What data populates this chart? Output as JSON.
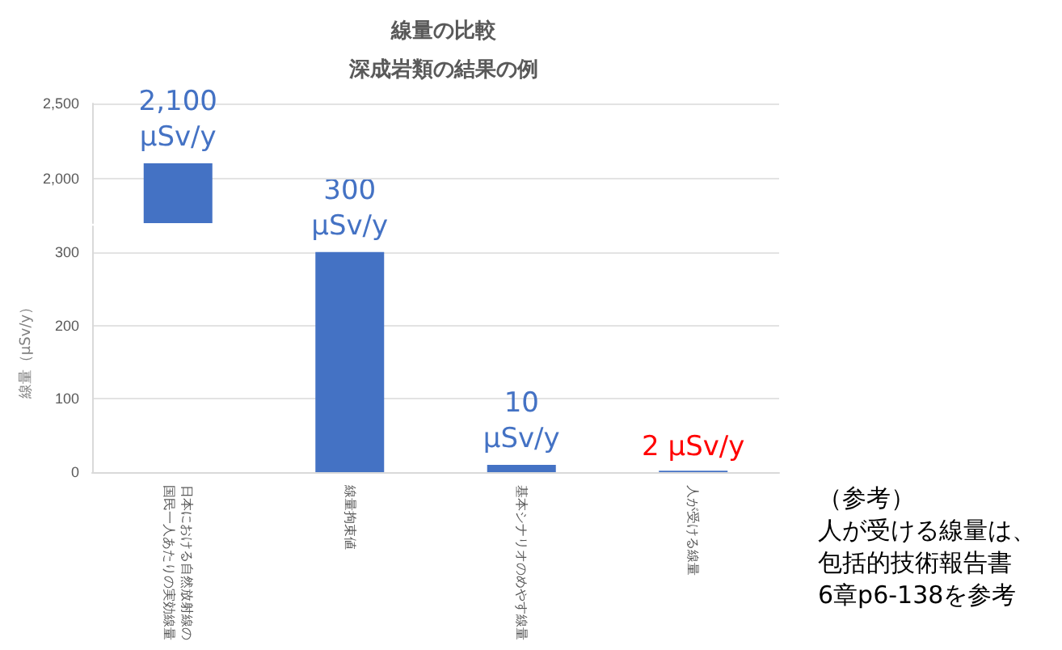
{
  "chart_data": [
    {
      "type": "bar",
      "title": "線量の比較",
      "subtitle": "深成岩類の結果の例",
      "categories": [
        null,
        null,
        null,
        null
      ],
      "values": [
        2100,
        null,
        null,
        null
      ],
      "color": "#4472c4",
      "value_labels": [
        "2,100\nμSv/y",
        null,
        null,
        null
      ],
      "ylim": [
        1700,
        2500
      ],
      "yticks": [
        {
          "value": 2000,
          "label": "2,000"
        },
        {
          "value": 2500,
          "label": "2,500"
        }
      ],
      "grid": "y",
      "tick_labels": "y"
    },
    {
      "type": "bar",
      "ylabel": "線量（μSv/y）",
      "categories": [
        "日本における自然放射線の国民一人あたりの実効線量",
        "線量拘束値",
        "基本シナリオのめやす線量",
        "人が受ける線量"
      ],
      "values": [
        null,
        300,
        10,
        2
      ],
      "color": "#4472c4",
      "value_labels": [
        null,
        "300\nμSv/y",
        "10\nμSv/y",
        null
      ],
      "ylim": [
        0,
        335
      ],
      "yticks": [
        0,
        100,
        200,
        300
      ],
      "grid": "y",
      "annotations": [
        {
          "text": "2 μSv/y",
          "x": "人が受ける線量",
          "y": 2
        },
        "（参考）",
        "人が受ける線量は、",
        "包括的技術報告書",
        "6章p6-138を参考"
      ]
    }
  ]
}
